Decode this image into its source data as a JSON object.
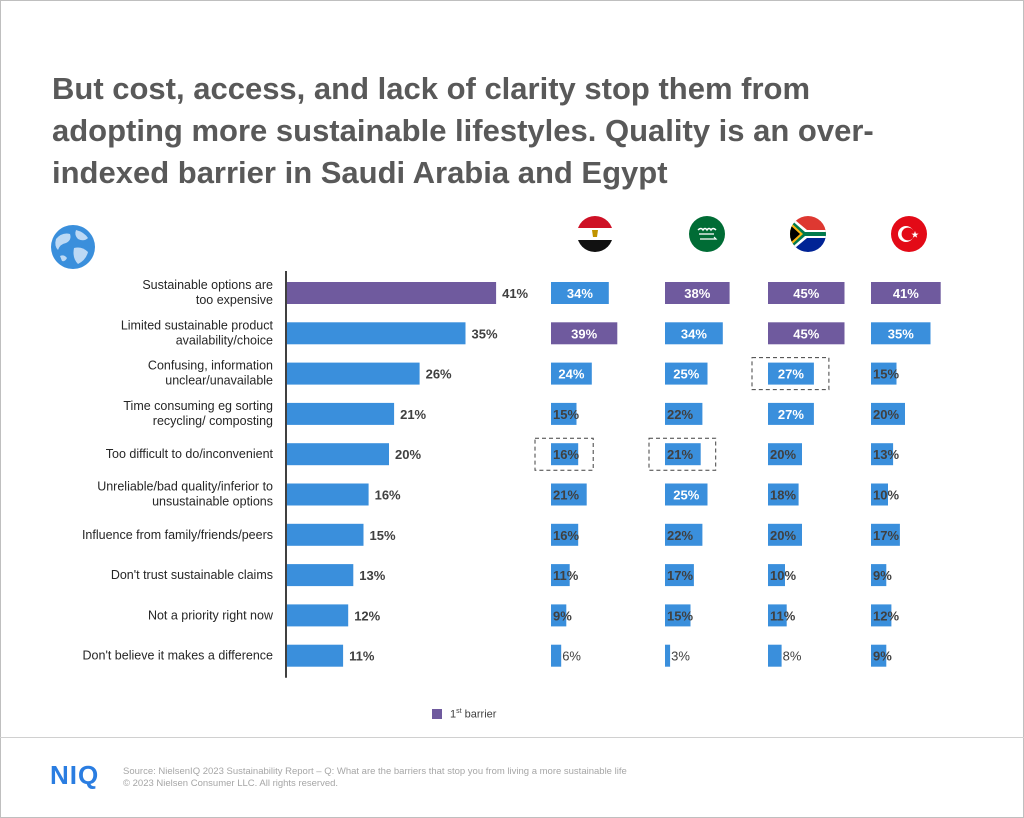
{
  "title": "But cost, access, and lack of clarity stop them from adopting more sustainable lifestyles. Quality is an over-indexed barrier in Saudi Arabia and Egypt",
  "colors": {
    "bar": "#3a8fdc",
    "first_barrier": "#6f5a9e",
    "title": "#595959",
    "axis": "#404040"
  },
  "icons": [
    "globe-icon",
    "egypt-flag-icon",
    "saudi-arabia-flag-icon",
    "south-africa-flag-icon",
    "turkey-flag-icon"
  ],
  "legend": {
    "label": "1st barrier",
    "label_base": "1",
    "label_sup": "st",
    "label_rest": " barrier"
  },
  "footer": {
    "logo": "NIQ",
    "source": "Source: NielsenIQ 2023 Sustainability Report – Q: What are the barriers that stop you from living a more sustainable life",
    "copyright": "© 2023 Nielsen Consumer LLC. All rights reserved."
  },
  "chart_data": {
    "type": "bar",
    "orientation": "horizontal",
    "categories": [
      [
        "Sustainable options are",
        "too expensive"
      ],
      [
        "Limited sustainable product",
        "availability/choice"
      ],
      [
        "Confusing, information",
        "unclear/unavailable"
      ],
      [
        "Time consuming eg sorting",
        "recycling/ composting"
      ],
      [
        "Too difficult to do/inconvenient"
      ],
      [
        "Unreliable/bad quality/inferior to",
        "unsustainable options"
      ],
      [
        "Influence from family/friends/peers"
      ],
      [
        "Don't trust sustainable claims"
      ],
      [
        "Not a priority right now"
      ],
      [
        "Don't believe it makes a difference"
      ]
    ],
    "unit": "%",
    "overall": {
      "values": [
        41,
        35,
        26,
        21,
        20,
        16,
        15,
        13,
        12,
        11
      ],
      "first_barrier": [
        0
      ]
    },
    "countries": [
      {
        "flag": "egypt-flag-icon",
        "values": [
          34,
          39,
          24,
          15,
          16,
          21,
          16,
          11,
          9,
          6
        ],
        "first_barrier": [
          1
        ],
        "highlighted": [
          4
        ]
      },
      {
        "flag": "saudi-arabia-flag-icon",
        "values": [
          38,
          34,
          25,
          22,
          21,
          25,
          22,
          17,
          15,
          3
        ],
        "first_barrier": [
          0
        ],
        "highlighted": [
          4
        ]
      },
      {
        "flag": "south-africa-flag-icon",
        "values": [
          45,
          45,
          27,
          27,
          20,
          18,
          20,
          10,
          11,
          8
        ],
        "first_barrier": [
          0,
          1
        ],
        "highlighted": [
          2
        ]
      },
      {
        "flag": "turkey-flag-icon",
        "values": [
          41,
          35,
          15,
          20,
          13,
          10,
          17,
          9,
          12,
          9
        ],
        "first_barrier": [
          0
        ],
        "highlighted": []
      }
    ],
    "legend_position": "bottom",
    "grid": false
  }
}
